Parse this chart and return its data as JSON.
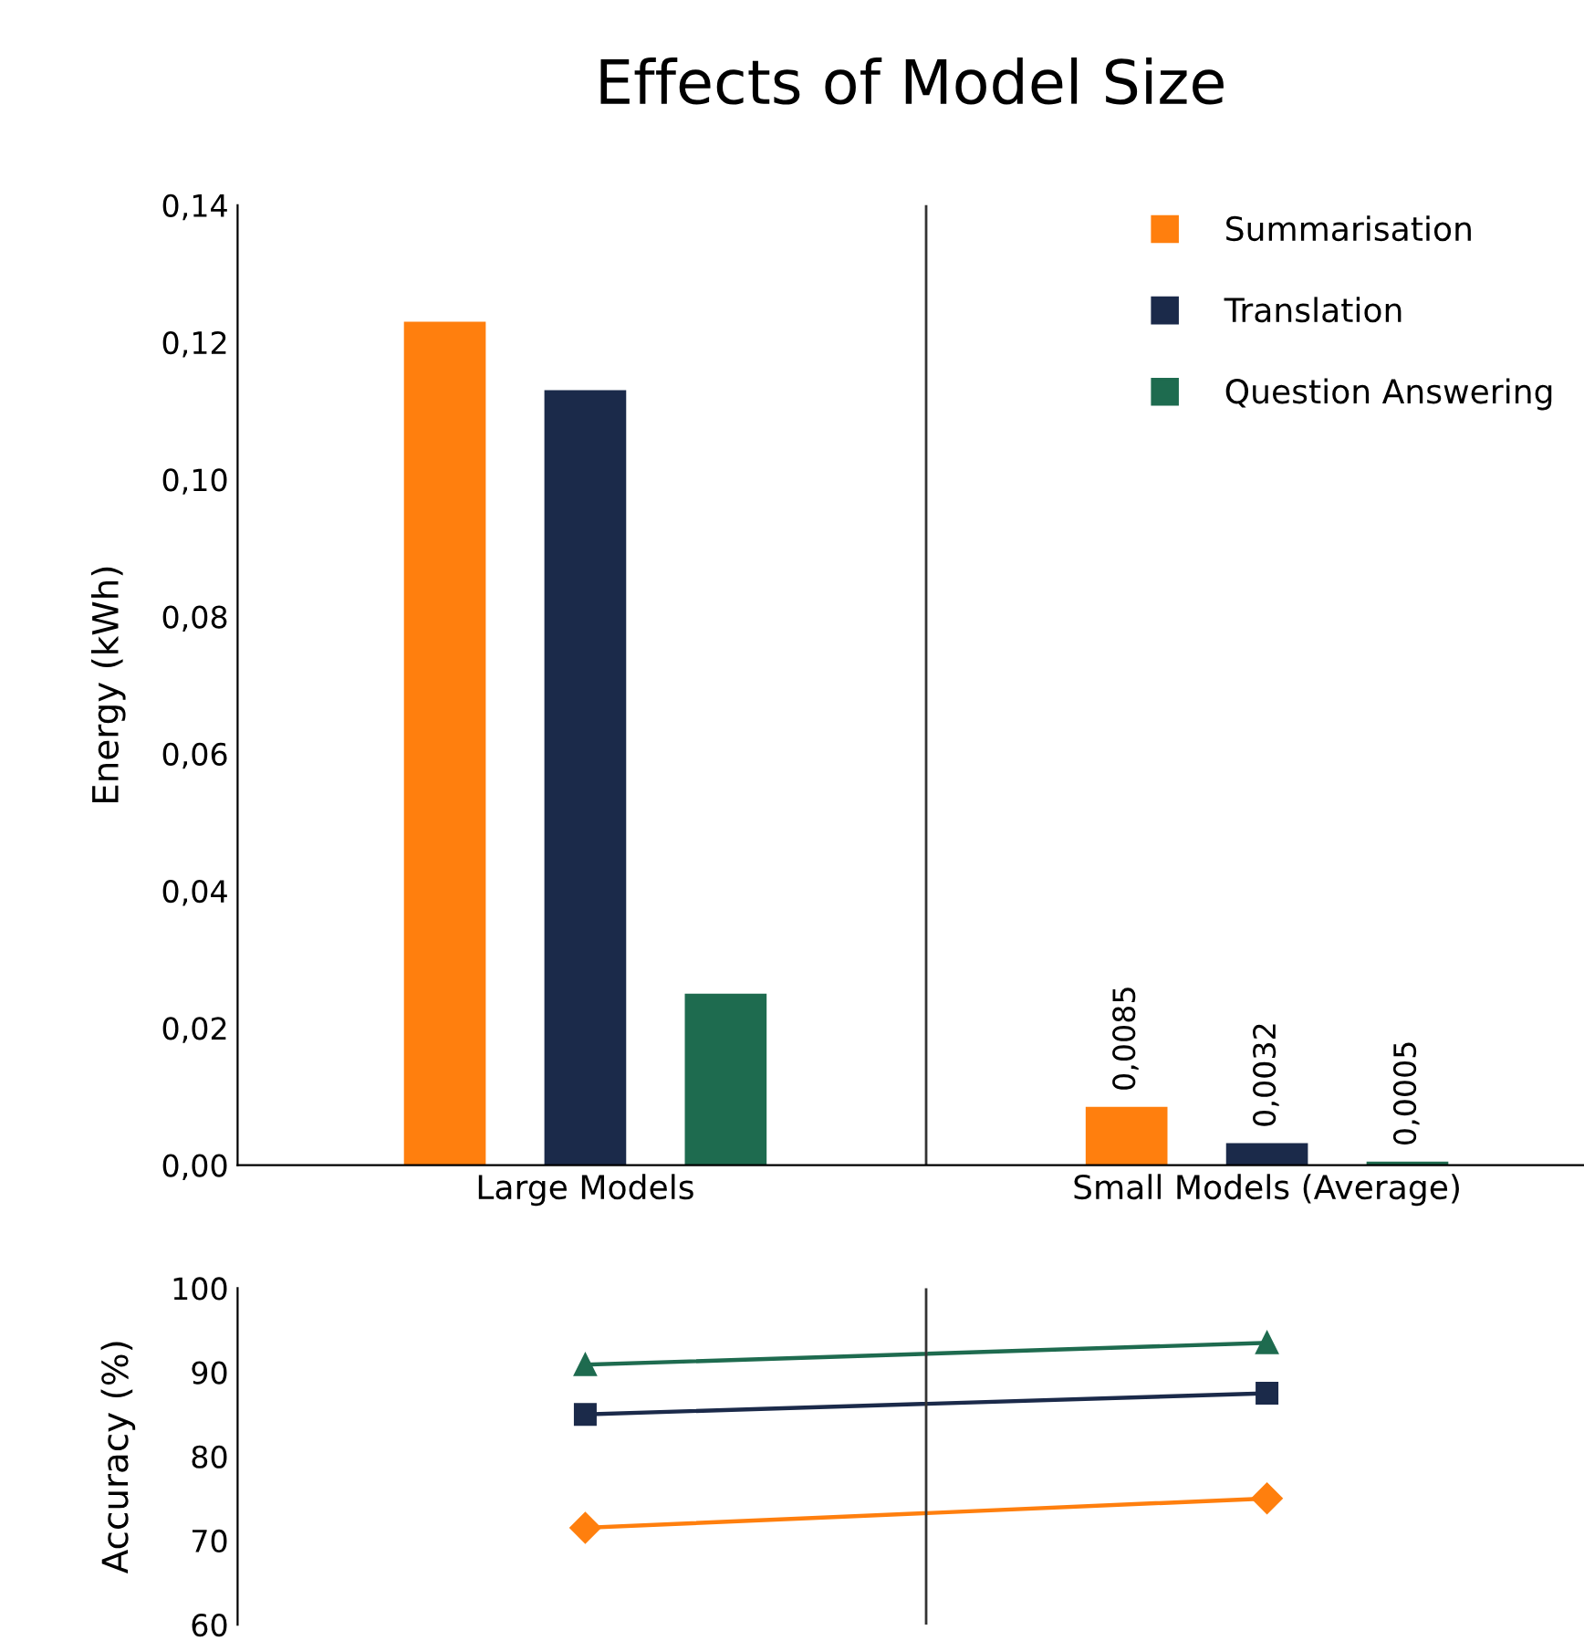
{
  "chart_data": [
    {
      "type": "bar",
      "title": "Effects of Model Size",
      "ylabel": "Energy (kWh)",
      "categories": [
        "Large Models",
        "Small Models (Average)"
      ],
      "series": [
        {
          "name": "Summarisation",
          "color": "#ff7f0e",
          "values": [
            0.123,
            0.0085
          ],
          "value_labels": [
            null,
            "0,0085"
          ]
        },
        {
          "name": "Translation",
          "color": "#1b2a4a",
          "values": [
            0.113,
            0.0032
          ],
          "value_labels": [
            null,
            "0,0032"
          ]
        },
        {
          "name": "Question Answering",
          "color": "#1e6b4f",
          "values": [
            0.025,
            0.0005
          ],
          "value_labels": [
            null,
            "0,0005"
          ]
        }
      ],
      "ylim": [
        0,
        0.14
      ],
      "yticks": [
        {
          "value": 0,
          "label": "0,00"
        },
        {
          "value": 0.02,
          "label": "0,02"
        },
        {
          "value": 0.04,
          "label": "0,04"
        },
        {
          "value": 0.06,
          "label": "0,06"
        },
        {
          "value": 0.08,
          "label": "0,08"
        },
        {
          "value": 0.1,
          "label": "0,10"
        },
        {
          "value": 0.12,
          "label": "0,12"
        },
        {
          "value": 0.14,
          "label": "0,14"
        }
      ],
      "legend": "top right",
      "grid": false
    },
    {
      "type": "line",
      "ylabel": "Accuracy (%)",
      "categories": [
        null,
        null
      ],
      "series": [
        {
          "color": "#1e6b4f",
          "values": [
            90.9,
            93.5
          ],
          "marker": "triangle"
        },
        {
          "color": "#1b2a4a",
          "values": [
            85,
            87.5
          ],
          "marker": "square"
        },
        {
          "color": "#ff7f0e",
          "values": [
            71.5,
            75
          ],
          "marker": "diamond"
        }
      ],
      "ylim": [
        60,
        100
      ],
      "yticks": [
        60,
        70,
        80,
        90,
        100
      ],
      "tick_labels": "y",
      "grid": false
    }
  ]
}
